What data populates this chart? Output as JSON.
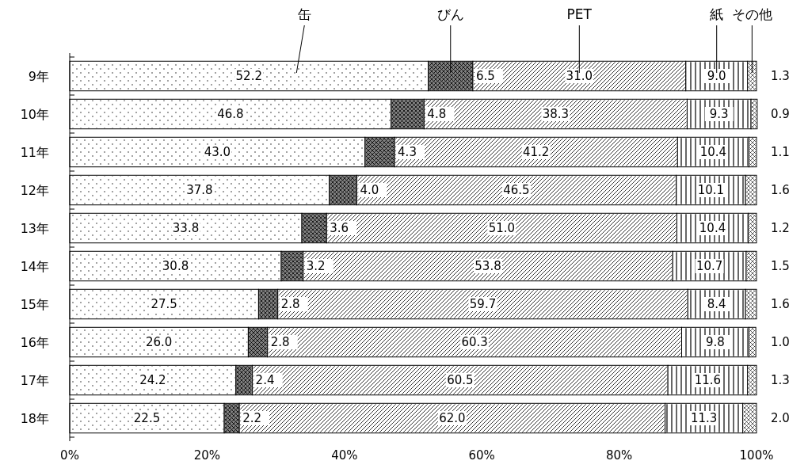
{
  "chart_data": {
    "type": "bar",
    "orientation": "horizontal",
    "stacked": true,
    "categories": [
      "9年",
      "10年",
      "11年",
      "12年",
      "13年",
      "14年",
      "15年",
      "16年",
      "17年",
      "18年"
    ],
    "series": [
      {
        "name": "缶",
        "color": "#ffffff",
        "values": [
          52.2,
          46.8,
          43.0,
          37.8,
          33.8,
          30.8,
          27.5,
          26.0,
          24.2,
          22.5
        ],
        "value_labels": [
          "52.2",
          "46.8",
          "43.0",
          "37.8",
          "33.8",
          "30.8",
          "27.5",
          "26.0",
          "24.2",
          "22.5"
        ]
      },
      {
        "name": "びん",
        "color": "#808080",
        "values": [
          6.5,
          4.8,
          4.3,
          4.0,
          3.6,
          3.2,
          2.8,
          2.8,
          2.4,
          2.2
        ],
        "value_labels": [
          "6.5",
          "4.8",
          "4.3",
          "4.0",
          "3.6",
          "3.2",
          "2.8",
          "2.8",
          "2.4",
          "2.2"
        ]
      },
      {
        "name": "PET",
        "color": "#ffffff",
        "values": [
          31.0,
          38.3,
          41.2,
          46.5,
          51.0,
          53.8,
          59.7,
          60.3,
          60.5,
          62.0
        ],
        "value_labels": [
          "31.0",
          "38.3",
          "41.2",
          "46.5",
          "51.0",
          "53.8",
          "59.7",
          "60.3",
          "60.5",
          "62.0"
        ]
      },
      {
        "name": "紙",
        "color": "#ffffff",
        "values": [
          9.0,
          9.3,
          10.4,
          10.1,
          10.4,
          10.7,
          8.4,
          9.8,
          11.6,
          11.3
        ],
        "value_labels": [
          "9.0",
          "9.3",
          "10.4",
          "10.1",
          "10.4",
          "10.7",
          "8.4",
          "9.8",
          "11.6",
          "11.3"
        ]
      },
      {
        "name": "その他",
        "color": "#ffffff",
        "values": [
          1.3,
          0.9,
          1.1,
          1.6,
          1.2,
          1.5,
          1.6,
          1.0,
          1.3,
          2.0
        ],
        "value_labels": [
          "1.3",
          "0.9",
          "1.1",
          "1.6",
          "1.2",
          "1.5",
          "1.6",
          "1.0",
          "1.3",
          "2.0"
        ]
      }
    ],
    "xlim": [
      0,
      100
    ],
    "xticks": [
      {
        "value": 0,
        "label": "0%"
      },
      {
        "value": 20,
        "label": "20%"
      },
      {
        "value": 40,
        "label": "40%"
      },
      {
        "value": 60,
        "label": "60%"
      },
      {
        "value": 80,
        "label": "80%"
      },
      {
        "value": 100,
        "label": "100%"
      }
    ],
    "grid": false
  }
}
